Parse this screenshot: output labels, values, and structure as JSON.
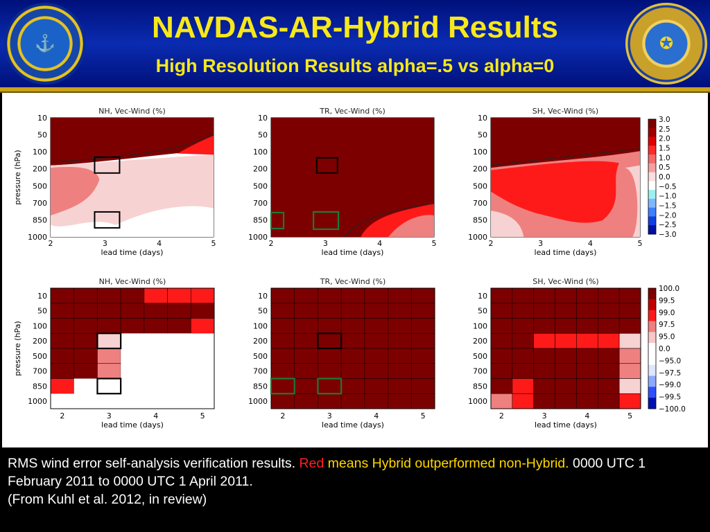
{
  "header": {
    "title": "NAVDAS-AR-Hybrid Results",
    "subtitle": "High Resolution Results alpha=.5 vs alpha=0",
    "left_seal_icon": "naval-research-laboratory-monterey-seal",
    "right_seal_icon": "department-of-the-navy-nrl-seal"
  },
  "colors": {
    "header_blue": "#0a2bb0",
    "title_yellow": "#f7e81a",
    "gold_rule": "#caa21a",
    "highlight_red": "#ff2020",
    "highlight_yellow": "#ffd800",
    "box_black": "#000000",
    "box_green": "#1a7a3a"
  },
  "caption": {
    "line1_pre": "RMS wind error self-analysis verification results. ",
    "line1_red": "Red",
    "line1_yellow": " means Hybrid outperformed non-Hybrid.",
    "line1_post": " 0000 UTC 1 February 2011 to 0000 UTC 1 April 2011.",
    "line2": "(From Kuhl et al. 2012, in review)"
  },
  "chart_data": [
    {
      "type": "contour",
      "title": "NH, Vec-Wind (%)",
      "xlabel": "lead time (days)",
      "ylabel": "pressure (hPa)",
      "x_ticks": [
        "2",
        "3",
        "4",
        "5"
      ],
      "y_ticks": [
        "10",
        "50",
        "100",
        "200",
        "500",
        "700",
        "850",
        "1000"
      ],
      "levels": [
        -3.0,
        -2.5,
        -2.0,
        -1.5,
        -1.0,
        -0.5,
        0.0,
        0.5,
        1.0,
        1.5,
        2.0,
        2.5,
        3.0
      ],
      "boxes": [
        {
          "color": "black",
          "lead": 3,
          "level": "200"
        },
        {
          "color": "black",
          "lead": 3,
          "level": "850"
        }
      ]
    },
    {
      "type": "contour",
      "title": "TR, Vec-Wind (%)",
      "xlabel": "lead time (days)",
      "ylabel": "",
      "x_ticks": [
        "2",
        "3",
        "4",
        "5"
      ],
      "y_ticks": [
        "10",
        "50",
        "100",
        "200",
        "500",
        "700",
        "850",
        "1000"
      ],
      "levels": [
        -3.0,
        -2.5,
        -2.0,
        -1.5,
        -1.0,
        -0.5,
        0.0,
        0.5,
        1.0,
        1.5,
        2.0,
        2.5,
        3.0
      ],
      "boxes": [
        {
          "color": "black",
          "lead": 3,
          "level": "200"
        },
        {
          "color": "green",
          "lead": 3,
          "level": "850"
        },
        {
          "color": "green",
          "lead": 2,
          "level": "850"
        }
      ]
    },
    {
      "type": "contour",
      "title": "SH, Vec-Wind (%)",
      "xlabel": "lead time (days)",
      "ylabel": "",
      "x_ticks": [
        "2",
        "3",
        "4",
        "5"
      ],
      "y_ticks": [
        "10",
        "50",
        "100",
        "200",
        "500",
        "700",
        "850",
        "1000"
      ],
      "colorbar_ticks": [
        "3.0",
        "2.5",
        "2.0",
        "1.5",
        "1.0",
        "0.5",
        "0.0",
        "−0.5",
        "−1.0",
        "−1.5",
        "−2.0",
        "−2.5",
        "−3.0"
      ],
      "levels": [
        -3.0,
        -2.5,
        -2.0,
        -1.5,
        -1.0,
        -0.5,
        0.0,
        0.5,
        1.0,
        1.5,
        2.0,
        2.5,
        3.0
      ]
    },
    {
      "type": "heatmap",
      "title": "NH, Vec-Wind (%)",
      "xlabel": "lead time (days)",
      "ylabel": "pressure (hPa)",
      "x_ticks": [
        "2",
        "3",
        "4",
        "5"
      ],
      "y_ticks": [
        "10",
        "50",
        "100",
        "200",
        "500",
        "700",
        "850",
        "1000"
      ],
      "cells": [
        [
          "D",
          "D",
          "D",
          "D",
          "R",
          "R",
          "R"
        ],
        [
          "D",
          "D",
          "D",
          "D",
          "D",
          "D",
          "D"
        ],
        [
          "D",
          "D",
          "D",
          "D",
          "D",
          "D",
          "R"
        ],
        [
          "D",
          "D",
          "P",
          "-",
          "-",
          "-",
          "-"
        ],
        [
          "D",
          "D",
          "S",
          "-",
          "-",
          "-",
          "-"
        ],
        [
          "D",
          "D",
          "S",
          "-",
          "-",
          "-",
          "-"
        ],
        [
          "R",
          "-",
          "-",
          "-",
          "-",
          "-",
          "-"
        ],
        [
          "-",
          "-",
          "-",
          "-",
          "-",
          "-",
          "-"
        ]
      ],
      "boxes": [
        {
          "color": "black",
          "col": 2,
          "row": 3
        },
        {
          "color": "black",
          "col": 2,
          "row": 6
        }
      ]
    },
    {
      "type": "heatmap",
      "title": "TR, Vec-Wind (%)",
      "xlabel": "lead time (days)",
      "ylabel": "",
      "x_ticks": [
        "2",
        "3",
        "4",
        "5"
      ],
      "y_ticks": [
        "10",
        "50",
        "100",
        "200",
        "500",
        "700",
        "850",
        "1000"
      ],
      "cells": [
        [
          "D",
          "D",
          "D",
          "D",
          "D",
          "D",
          "D"
        ],
        [
          "D",
          "D",
          "D",
          "D",
          "D",
          "D",
          "D"
        ],
        [
          "D",
          "D",
          "D",
          "D",
          "D",
          "D",
          "D"
        ],
        [
          "D",
          "D",
          "D",
          "D",
          "D",
          "D",
          "D"
        ],
        [
          "D",
          "D",
          "D",
          "D",
          "D",
          "D",
          "D"
        ],
        [
          "D",
          "D",
          "D",
          "D",
          "D",
          "D",
          "D"
        ],
        [
          "D",
          "D",
          "D",
          "D",
          "D",
          "D",
          "D"
        ],
        [
          "D",
          "D",
          "D",
          "D",
          "D",
          "D",
          "D"
        ]
      ],
      "boxes": [
        {
          "color": "black",
          "col": 2,
          "row": 3
        },
        {
          "color": "green",
          "col": 2,
          "row": 6
        },
        {
          "color": "green",
          "col": 0,
          "row": 6
        }
      ]
    },
    {
      "type": "heatmap",
      "title": "SH, Vec-Wind (%)",
      "xlabel": "lead time (days)",
      "ylabel": "",
      "x_ticks": [
        "2",
        "3",
        "4",
        "5"
      ],
      "y_ticks": [
        "10",
        "50",
        "100",
        "200",
        "500",
        "700",
        "850",
        "1000"
      ],
      "colorbar_ticks": [
        "100.0",
        "99.5",
        "99.0",
        "97.5",
        "95.0",
        "0.0",
        "−95.0",
        "−97.5",
        "−99.0",
        "−99.5",
        "−100.0"
      ],
      "cells": [
        [
          "D",
          "D",
          "D",
          "D",
          "D",
          "D",
          "D"
        ],
        [
          "D",
          "D",
          "D",
          "D",
          "D",
          "D",
          "D"
        ],
        [
          "D",
          "D",
          "D",
          "D",
          "D",
          "D",
          "D"
        ],
        [
          "D",
          "D",
          "R",
          "R",
          "R",
          "R",
          "P"
        ],
        [
          "D",
          "D",
          "D",
          "D",
          "D",
          "D",
          "S"
        ],
        [
          "D",
          "D",
          "D",
          "D",
          "D",
          "D",
          "S"
        ],
        [
          "D",
          "R",
          "D",
          "D",
          "D",
          "D",
          "P"
        ],
        [
          "S",
          "R",
          "D",
          "D",
          "D",
          "D",
          "R"
        ]
      ]
    }
  ]
}
